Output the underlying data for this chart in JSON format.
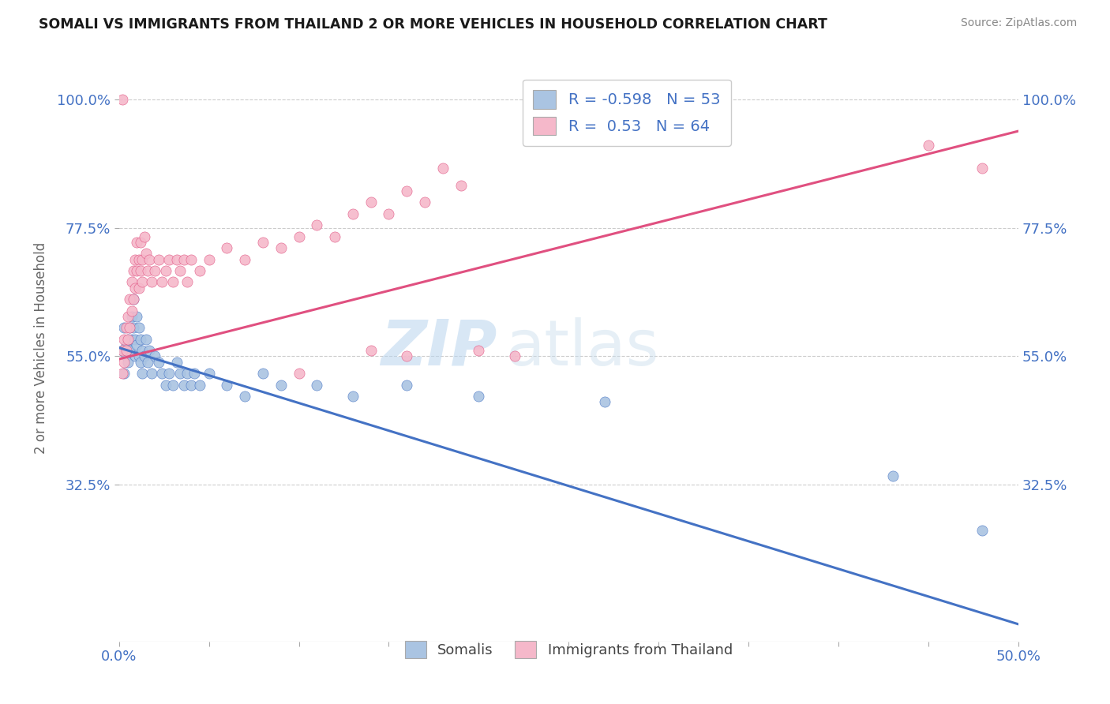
{
  "title": "SOMALI VS IMMIGRANTS FROM THAILAND 2 OR MORE VEHICLES IN HOUSEHOLD CORRELATION CHART",
  "source": "Source: ZipAtlas.com",
  "ylabel": "2 or more Vehicles in Household",
  "xmin": 0.0,
  "xmax": 0.5,
  "xtick_vals": [
    0.0,
    0.05,
    0.1,
    0.15,
    0.2,
    0.25,
    0.3,
    0.35,
    0.4,
    0.45,
    0.5
  ],
  "xticklabels_major": [
    "0.0%",
    "",
    "",
    "",
    "",
    "",
    "",
    "",
    "",
    "",
    "50.0%"
  ],
  "ytick_vals": [
    0.325,
    0.55,
    0.775,
    1.0
  ],
  "yticklabels": [
    "32.5%",
    "55.0%",
    "77.5%",
    "100.0%"
  ],
  "legend_label1": "Somalis",
  "legend_label2": "Immigrants from Thailand",
  "R1": -0.598,
  "N1": 53,
  "R2": 0.53,
  "N2": 64,
  "color1": "#aac4e2",
  "color2": "#f5b8ca",
  "line_color1": "#4472c4",
  "line_color2": "#e05080",
  "watermark_zip": "ZIP",
  "watermark_atlas": "atlas",
  "background_color": "#ffffff",
  "somali_points": [
    [
      0.002,
      0.56
    ],
    [
      0.003,
      0.52
    ],
    [
      0.003,
      0.6
    ],
    [
      0.004,
      0.57
    ],
    [
      0.004,
      0.55
    ],
    [
      0.005,
      0.58
    ],
    [
      0.005,
      0.54
    ],
    [
      0.006,
      0.6
    ],
    [
      0.006,
      0.56
    ],
    [
      0.007,
      0.62
    ],
    [
      0.007,
      0.58
    ],
    [
      0.008,
      0.65
    ],
    [
      0.008,
      0.6
    ],
    [
      0.009,
      0.58
    ],
    [
      0.009,
      0.55
    ],
    [
      0.01,
      0.62
    ],
    [
      0.01,
      0.57
    ],
    [
      0.011,
      0.6
    ],
    [
      0.011,
      0.55
    ],
    [
      0.012,
      0.58
    ],
    [
      0.012,
      0.54
    ],
    [
      0.013,
      0.56
    ],
    [
      0.013,
      0.52
    ],
    [
      0.014,
      0.55
    ],
    [
      0.015,
      0.58
    ],
    [
      0.016,
      0.54
    ],
    [
      0.017,
      0.56
    ],
    [
      0.018,
      0.52
    ],
    [
      0.02,
      0.55
    ],
    [
      0.022,
      0.54
    ],
    [
      0.024,
      0.52
    ],
    [
      0.026,
      0.5
    ],
    [
      0.028,
      0.52
    ],
    [
      0.03,
      0.5
    ],
    [
      0.032,
      0.54
    ],
    [
      0.034,
      0.52
    ],
    [
      0.036,
      0.5
    ],
    [
      0.038,
      0.52
    ],
    [
      0.04,
      0.5
    ],
    [
      0.042,
      0.52
    ],
    [
      0.045,
      0.5
    ],
    [
      0.05,
      0.52
    ],
    [
      0.06,
      0.5
    ],
    [
      0.07,
      0.48
    ],
    [
      0.08,
      0.52
    ],
    [
      0.09,
      0.5
    ],
    [
      0.11,
      0.5
    ],
    [
      0.13,
      0.48
    ],
    [
      0.16,
      0.5
    ],
    [
      0.2,
      0.48
    ],
    [
      0.27,
      0.47
    ],
    [
      0.43,
      0.34
    ],
    [
      0.48,
      0.245
    ]
  ],
  "thailand_points": [
    [
      0.002,
      0.56
    ],
    [
      0.002,
      0.52
    ],
    [
      0.003,
      0.58
    ],
    [
      0.003,
      0.54
    ],
    [
      0.004,
      0.6
    ],
    [
      0.004,
      0.56
    ],
    [
      0.005,
      0.62
    ],
    [
      0.005,
      0.58
    ],
    [
      0.006,
      0.65
    ],
    [
      0.006,
      0.6
    ],
    [
      0.007,
      0.68
    ],
    [
      0.007,
      0.63
    ],
    [
      0.008,
      0.7
    ],
    [
      0.008,
      0.65
    ],
    [
      0.009,
      0.72
    ],
    [
      0.009,
      0.67
    ],
    [
      0.01,
      0.75
    ],
    [
      0.01,
      0.7
    ],
    [
      0.011,
      0.72
    ],
    [
      0.011,
      0.67
    ],
    [
      0.012,
      0.75
    ],
    [
      0.012,
      0.7
    ],
    [
      0.013,
      0.72
    ],
    [
      0.013,
      0.68
    ],
    [
      0.014,
      0.76
    ],
    [
      0.015,
      0.73
    ],
    [
      0.016,
      0.7
    ],
    [
      0.017,
      0.72
    ],
    [
      0.018,
      0.68
    ],
    [
      0.02,
      0.7
    ],
    [
      0.022,
      0.72
    ],
    [
      0.024,
      0.68
    ],
    [
      0.026,
      0.7
    ],
    [
      0.028,
      0.72
    ],
    [
      0.03,
      0.68
    ],
    [
      0.032,
      0.72
    ],
    [
      0.034,
      0.7
    ],
    [
      0.036,
      0.72
    ],
    [
      0.038,
      0.68
    ],
    [
      0.04,
      0.72
    ],
    [
      0.045,
      0.7
    ],
    [
      0.05,
      0.72
    ],
    [
      0.06,
      0.74
    ],
    [
      0.07,
      0.72
    ],
    [
      0.08,
      0.75
    ],
    [
      0.09,
      0.74
    ],
    [
      0.1,
      0.76
    ],
    [
      0.11,
      0.78
    ],
    [
      0.12,
      0.76
    ],
    [
      0.13,
      0.8
    ],
    [
      0.14,
      0.82
    ],
    [
      0.15,
      0.8
    ],
    [
      0.16,
      0.84
    ],
    [
      0.17,
      0.82
    ],
    [
      0.18,
      0.88
    ],
    [
      0.19,
      0.85
    ],
    [
      0.2,
      0.56
    ],
    [
      0.22,
      0.55
    ],
    [
      0.002,
      1.0
    ],
    [
      0.1,
      0.52
    ],
    [
      0.14,
      0.56
    ],
    [
      0.16,
      0.55
    ],
    [
      0.45,
      0.92
    ],
    [
      0.48,
      0.88
    ]
  ]
}
